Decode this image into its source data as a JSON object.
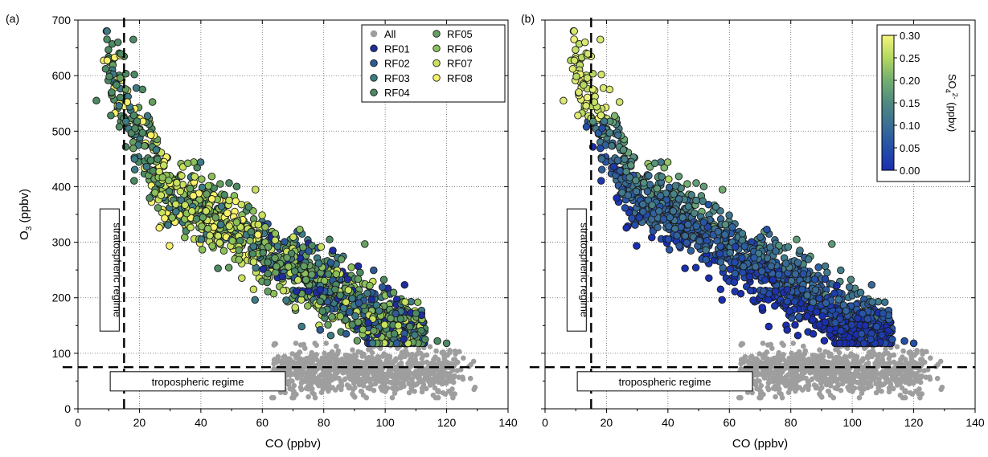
{
  "figure": {
    "panels": [
      {
        "id": "a",
        "panel_label": "(a)",
        "xlabel": "CO  (ppbv)",
        "ylabel_main": "O",
        "ylabel_sub": "3",
        "ylabel_unit": " (ppbv)",
        "regime_labels": {
          "stratospheric": "stratospheric regime",
          "tropospheric": "tropospheric regime"
        }
      },
      {
        "id": "b",
        "panel_label": "(b)",
        "xlabel": "CO (ppbv)",
        "regime_labels": {
          "stratospheric": "stratospheric regime",
          "tropospheric": "tropospheric regime"
        },
        "colorbar": {
          "label_main": "SO",
          "label_sub": "4",
          "label_sup": "2-",
          "label_unit": " (ppbv)",
          "range": [
            0.0,
            0.3
          ],
          "ticks": [
            "0.00",
            "0.05",
            "0.10",
            "0.15",
            "0.20",
            "0.25",
            "0.30"
          ],
          "colors": [
            "#1a2fb0",
            "#2450a8",
            "#3a6e95",
            "#4e8a80",
            "#72ae70",
            "#b3d860",
            "#f5f57a"
          ]
        }
      }
    ],
    "legend": {
      "entries": [
        {
          "label": "All",
          "color": "#9e9e9e"
        },
        {
          "label": "RF01",
          "color": "#1f2e9e"
        },
        {
          "label": "RF02",
          "color": "#2d5b96"
        },
        {
          "label": "RF03",
          "color": "#3d7b85"
        },
        {
          "label": "RF04",
          "color": "#4c8a64"
        },
        {
          "label": "RF05",
          "color": "#66a060"
        },
        {
          "label": "RF06",
          "color": "#8cc05a"
        },
        {
          "label": "RF07",
          "color": "#c8e25e"
        },
        {
          "label": "RF08",
          "color": "#f7f26a"
        }
      ]
    }
  },
  "chart_data": [
    {
      "type": "scatter",
      "title": "",
      "xlabel": "CO  (ppbv)",
      "ylabel": "O3 (ppbv)",
      "xlim": [
        0,
        140
      ],
      "ylim": [
        0,
        700
      ],
      "xticks": [
        0,
        20,
        40,
        60,
        80,
        100,
        120,
        140
      ],
      "yticks": [
        0,
        100,
        200,
        300,
        400,
        500,
        600,
        700
      ],
      "grid": true,
      "legend_position": "top-right",
      "reference_lines": [
        {
          "orientation": "vertical",
          "x": 15,
          "style": "dashed"
        },
        {
          "orientation": "horizontal",
          "y": 75,
          "style": "dashed"
        }
      ],
      "annotations": [
        "stratospheric regime",
        "tropospheric regime"
      ],
      "series": [
        {
          "name": "All",
          "marker": "small dot",
          "x_range": [
            62,
            132
          ],
          "y_range": [
            20,
            120
          ],
          "approx_count": 900
        },
        {
          "name": "RF01",
          "x_range": [
            40,
            85
          ],
          "y_range": [
            170,
            400
          ],
          "approx_count": 30
        },
        {
          "name": "RF02",
          "x_range": [
            8,
            100
          ],
          "y_range": [
            180,
            680
          ],
          "approx_count": 60
        },
        {
          "name": "RF03",
          "x_range": [
            8,
            115
          ],
          "y_range": [
            130,
            670
          ],
          "approx_count": 150
        },
        {
          "name": "RF04",
          "x_range": [
            5,
            118
          ],
          "y_range": [
            120,
            680
          ],
          "approx_count": 250
        },
        {
          "name": "RF05",
          "x_range": [
            15,
            110
          ],
          "y_range": [
            125,
            430
          ],
          "approx_count": 250
        },
        {
          "name": "RF06",
          "x_range": [
            20,
            95
          ],
          "y_range": [
            130,
            430
          ],
          "approx_count": 250
        },
        {
          "name": "RF07",
          "x_range": [
            22,
            90
          ],
          "y_range": [
            120,
            420
          ],
          "approx_count": 250
        },
        {
          "name": "RF08",
          "x_range": [
            25,
            85
          ],
          "y_range": [
            120,
            575
          ],
          "approx_count": 150
        }
      ]
    },
    {
      "type": "scatter",
      "title": "",
      "xlabel": "CO (ppbv)",
      "ylabel": "",
      "xlim": [
        0,
        140
      ],
      "ylim": [
        0,
        700
      ],
      "xticks": [
        0,
        20,
        40,
        60,
        80,
        100,
        120,
        140
      ],
      "yticks": [
        0,
        100,
        200,
        300,
        400,
        500,
        600,
        700
      ],
      "grid": true,
      "colorbar": {
        "label": "SO4 2- (ppbv)",
        "range": [
          0.0,
          0.3
        ],
        "position": "top-right"
      },
      "reference_lines": [
        {
          "orientation": "vertical",
          "x": 15,
          "style": "dashed"
        },
        {
          "orientation": "horizontal",
          "y": 75,
          "style": "dashed"
        }
      ],
      "annotations": [
        "stratospheric regime",
        "tropospheric regime"
      ],
      "trends": [
        {
          "region": "CO 5-25, O3 540-680",
          "so4": 0.3
        },
        {
          "region": "CO 25-60, O3 250-420, upper edge",
          "so4": 0.25
        },
        {
          "region": "CO 60-110, O3 120-250",
          "so4": 0.03
        },
        {
          "region": "below O3 120 (all data)",
          "color": "grey"
        }
      ]
    }
  ]
}
